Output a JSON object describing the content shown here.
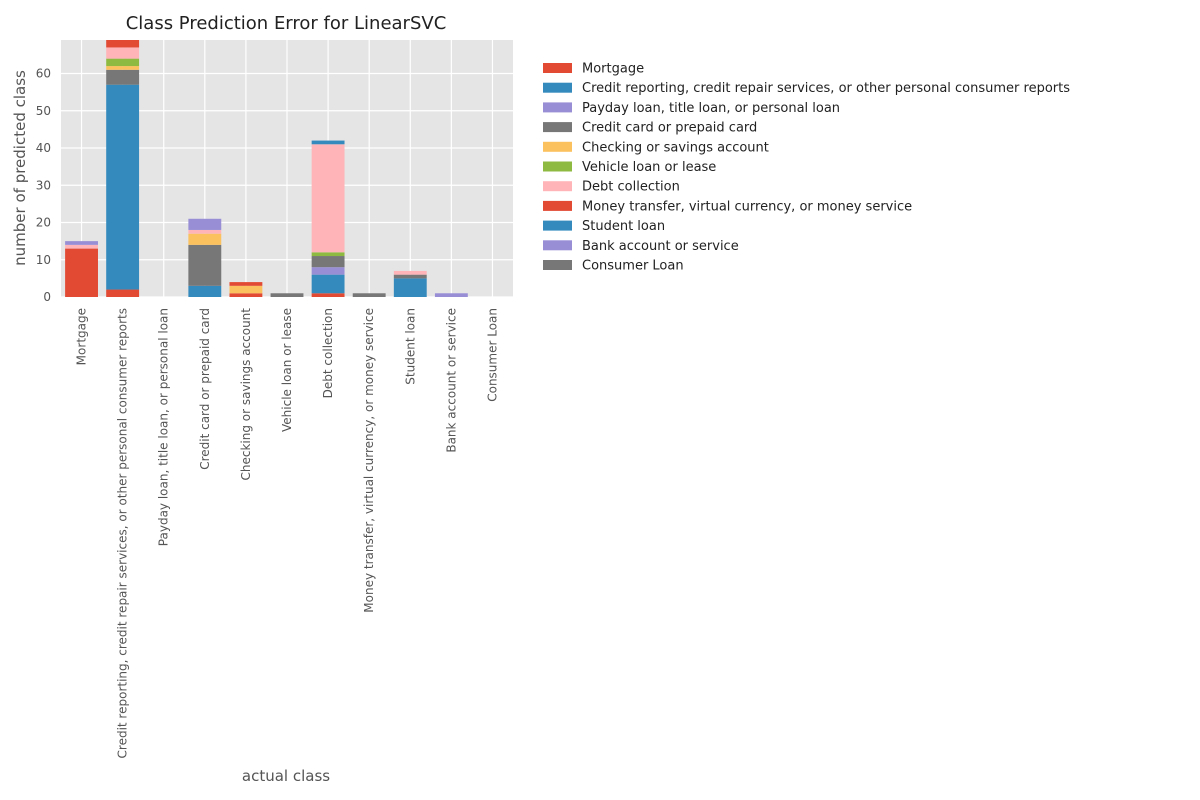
{
  "chart_data": {
    "type": "bar",
    "stacked": true,
    "title": "Class Prediction Error for LinearSVC",
    "xlabel": "actual class",
    "ylabel": "number of predicted class",
    "ylim": [
      0,
      69
    ],
    "yticks": [
      0,
      10,
      20,
      30,
      40,
      50,
      60
    ],
    "grid": true,
    "legend_position": "right",
    "categories": [
      "Mortgage",
      "Credit reporting, credit repair services, or other personal consumer reports",
      "Payday loan, title loan, or personal loan",
      "Credit card or prepaid card",
      "Checking or savings account",
      "Vehicle loan or lease",
      "Debt collection",
      "Money transfer, virtual currency, or money service",
      "Student loan",
      "Bank account or service",
      "Consumer Loan"
    ],
    "series": [
      {
        "name": "Mortgage",
        "color": "#E24A33",
        "values": [
          13,
          2,
          0,
          0,
          1,
          0,
          1,
          0,
          0,
          0,
          0
        ]
      },
      {
        "name": "Credit reporting, credit repair services, or other personal consumer reports",
        "color": "#348ABD",
        "values": [
          0,
          55,
          0,
          3,
          0,
          0,
          5,
          0,
          5,
          0,
          0
        ]
      },
      {
        "name": "Payday loan, title loan, or personal loan",
        "color": "#988ED5",
        "values": [
          0,
          0,
          0,
          0,
          0,
          0,
          2,
          0,
          0,
          0,
          0
        ]
      },
      {
        "name": "Credit card or prepaid card",
        "color": "#777777",
        "values": [
          0,
          4,
          0,
          11,
          0,
          1,
          3,
          1,
          1,
          0,
          0
        ]
      },
      {
        "name": "Checking or savings account",
        "color": "#FBC15E",
        "values": [
          0,
          1,
          0,
          3,
          2,
          0,
          0,
          0,
          0,
          0,
          0
        ]
      },
      {
        "name": "Vehicle loan or lease",
        "color": "#8EBA42",
        "values": [
          0,
          2,
          0,
          0,
          0,
          0,
          1,
          0,
          0,
          0,
          0
        ]
      },
      {
        "name": "Debt collection",
        "color": "#FFB5B8",
        "values": [
          1,
          3,
          0,
          1,
          0,
          0,
          29,
          0,
          1,
          0,
          0
        ]
      },
      {
        "name": "Money transfer, virtual currency, or money service",
        "color": "#E24A33",
        "values": [
          0,
          2,
          0,
          0,
          1,
          0,
          0,
          0,
          0,
          0,
          0
        ]
      },
      {
        "name": "Student loan",
        "color": "#348ABD",
        "values": [
          0,
          0,
          0,
          0,
          0,
          0,
          1,
          0,
          0,
          0,
          0
        ]
      },
      {
        "name": "Bank account or service",
        "color": "#988ED5",
        "values": [
          1,
          0,
          0,
          3,
          0,
          0,
          0,
          0,
          0,
          1,
          0
        ]
      },
      {
        "name": "Consumer Loan",
        "color": "#777777",
        "values": [
          0,
          0,
          0,
          0,
          0,
          0,
          0,
          0,
          0,
          0,
          0
        ]
      }
    ]
  }
}
